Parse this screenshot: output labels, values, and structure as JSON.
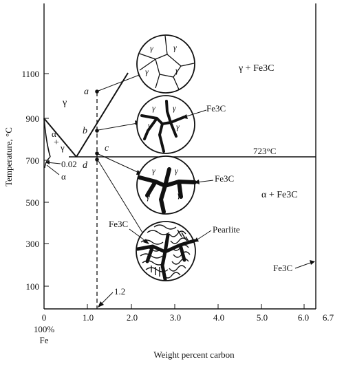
{
  "axes": {
    "y_label": "Temperature, °C",
    "x_label": "Weight percent carbon",
    "y_ticks": [
      "1100",
      "900",
      "700",
      "500",
      "300",
      "100"
    ],
    "x_ticks": [
      "0",
      "1.0",
      "2.0",
      "3.0",
      "4.0",
      "5.0",
      "6.0",
      "6.7"
    ],
    "x_origin_note_1": "100%",
    "x_origin_note_2": "Fe"
  },
  "regions": {
    "gamma": "γ",
    "alpha_gamma_alpha": "α",
    "alpha_gamma_plus": "+",
    "alpha_gamma_gamma": "γ",
    "alpha": "α",
    "gamma_fe3c": "γ + Fe3C",
    "alpha_fe3c": "α + Fe3C"
  },
  "labels": {
    "solubility": "0.02",
    "eutectoid_temp": "723°C",
    "composition_marker": "1.2",
    "point_a": "a",
    "point_b": "b",
    "point_c": "c",
    "point_d": "d",
    "fe3c_b": "Fe3C",
    "fe3c_c": "Fe3C",
    "fe3c_d": "Fe3C",
    "pearlite": "Pearlite",
    "fe3c_right": "Fe3C"
  },
  "micrographs": {
    "grain_symbol": "γ"
  }
}
